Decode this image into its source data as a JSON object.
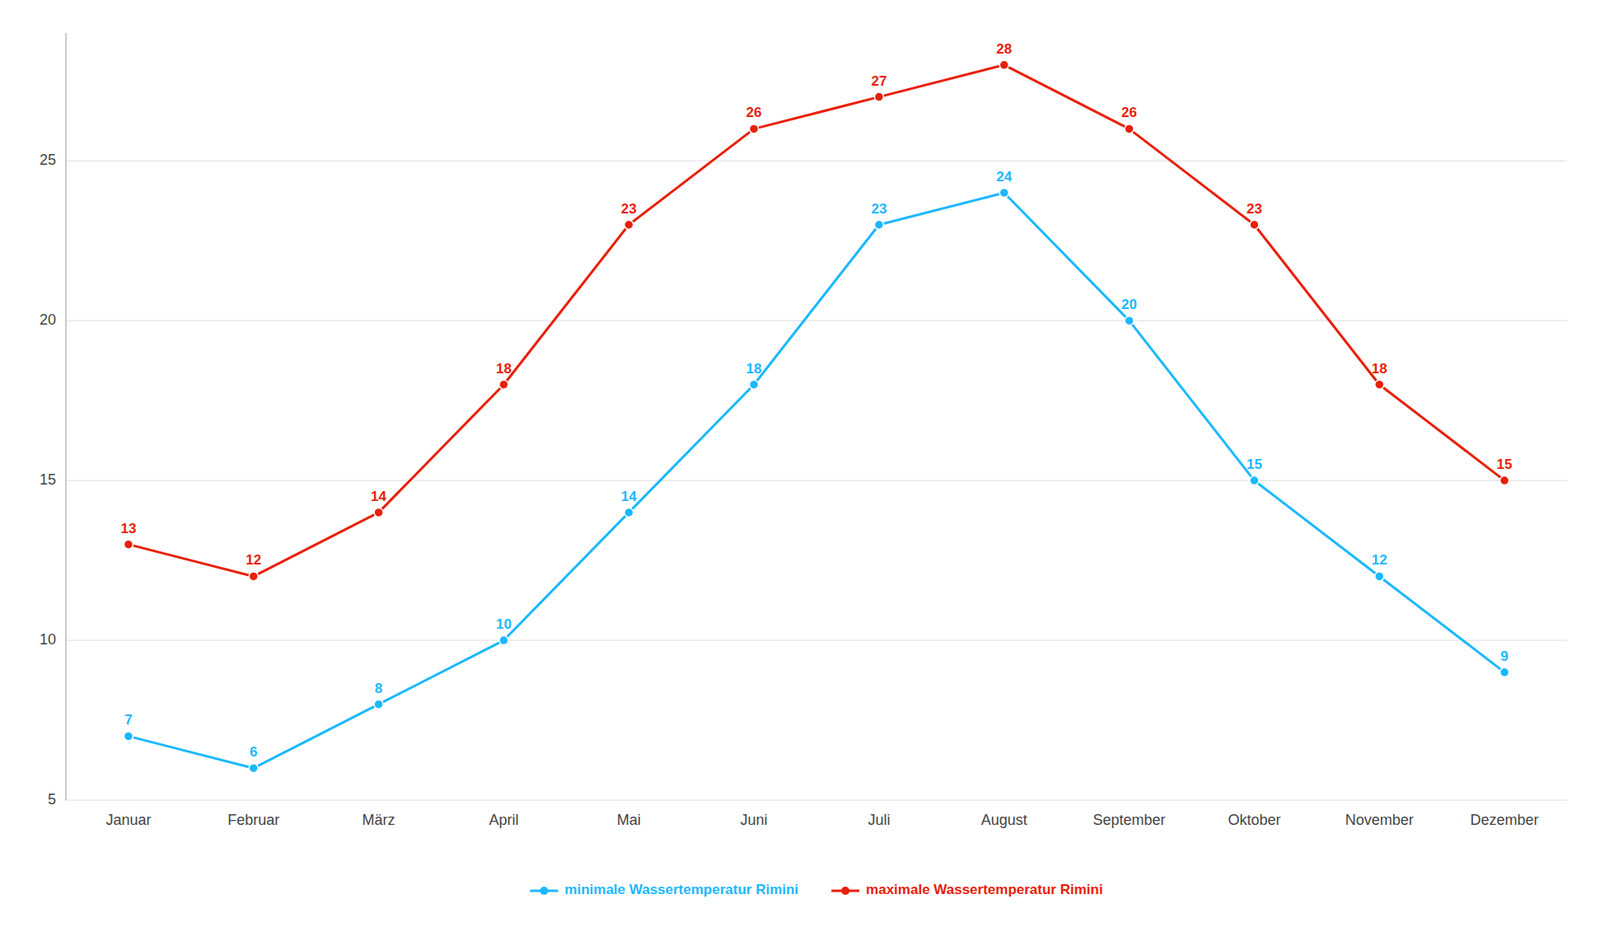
{
  "chart_data": {
    "type": "line",
    "categories": [
      "Januar",
      "Februar",
      "März",
      "April",
      "Mai",
      "Juni",
      "Juli",
      "August",
      "September",
      "Oktober",
      "November",
      "Dezember"
    ],
    "series": [
      {
        "name": "minimale Wassertemperatur Rimini",
        "color": "#1CB8FF",
        "values": [
          7,
          6,
          8,
          10,
          14,
          18,
          23,
          24,
          20,
          15,
          12,
          9
        ]
      },
      {
        "name": "maximale Wassertemperatur Rimini",
        "color": "#E8200A",
        "values": [
          13,
          12,
          14,
          18,
          23,
          26,
          27,
          28,
          26,
          23,
          18,
          15
        ]
      }
    ],
    "ylim": [
      5,
      29
    ],
    "yticks": [
      5,
      10,
      15,
      20,
      25
    ],
    "grid": true,
    "legend": "bottom",
    "data_labels": true,
    "marker": "circle"
  }
}
